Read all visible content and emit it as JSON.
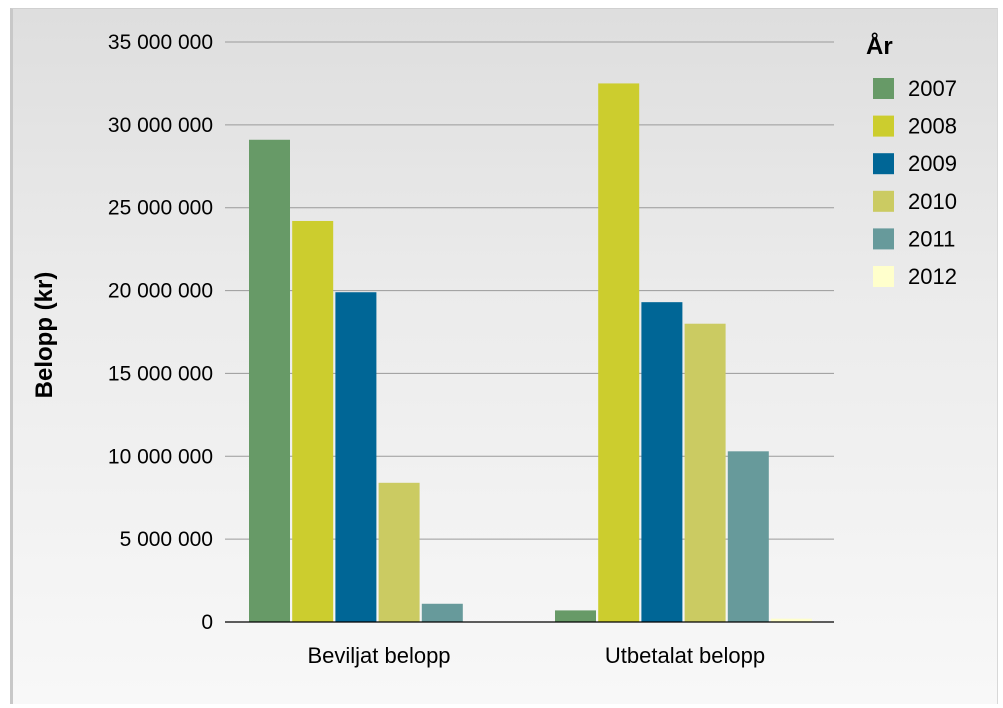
{
  "chart_data": {
    "type": "bar",
    "ylabel": "Belopp (kr)",
    "xlabel": "",
    "ylim": [
      0,
      35000000
    ],
    "yticks": [
      0,
      5000000,
      10000000,
      15000000,
      20000000,
      25000000,
      30000000,
      35000000
    ],
    "ytick_labels": [
      "0",
      "5 000 000",
      "10 000 000",
      "15 000 000",
      "20 000 000",
      "25 000 000",
      "30 000 000",
      "35 000 000"
    ],
    "categories": [
      "Beviljat belopp",
      "Utbetalat belopp"
    ],
    "legend_title": "År",
    "legend_position": "top-right",
    "grid": true,
    "series": [
      {
        "name": "2007",
        "color": "#679a67",
        "values": [
          29100000,
          700000
        ]
      },
      {
        "name": "2008",
        "color": "#cccd2e",
        "values": [
          24200000,
          32500000
        ]
      },
      {
        "name": "2009",
        "color": "#006696",
        "values": [
          19900000,
          19300000
        ]
      },
      {
        "name": "2010",
        "color": "#cbcb62",
        "values": [
          8400000,
          18000000
        ]
      },
      {
        "name": "2011",
        "color": "#679a9b",
        "values": [
          1100000,
          10300000
        ]
      },
      {
        "name": "2012",
        "color": "#ffffcc",
        "values": [
          0,
          200000
        ]
      }
    ]
  }
}
